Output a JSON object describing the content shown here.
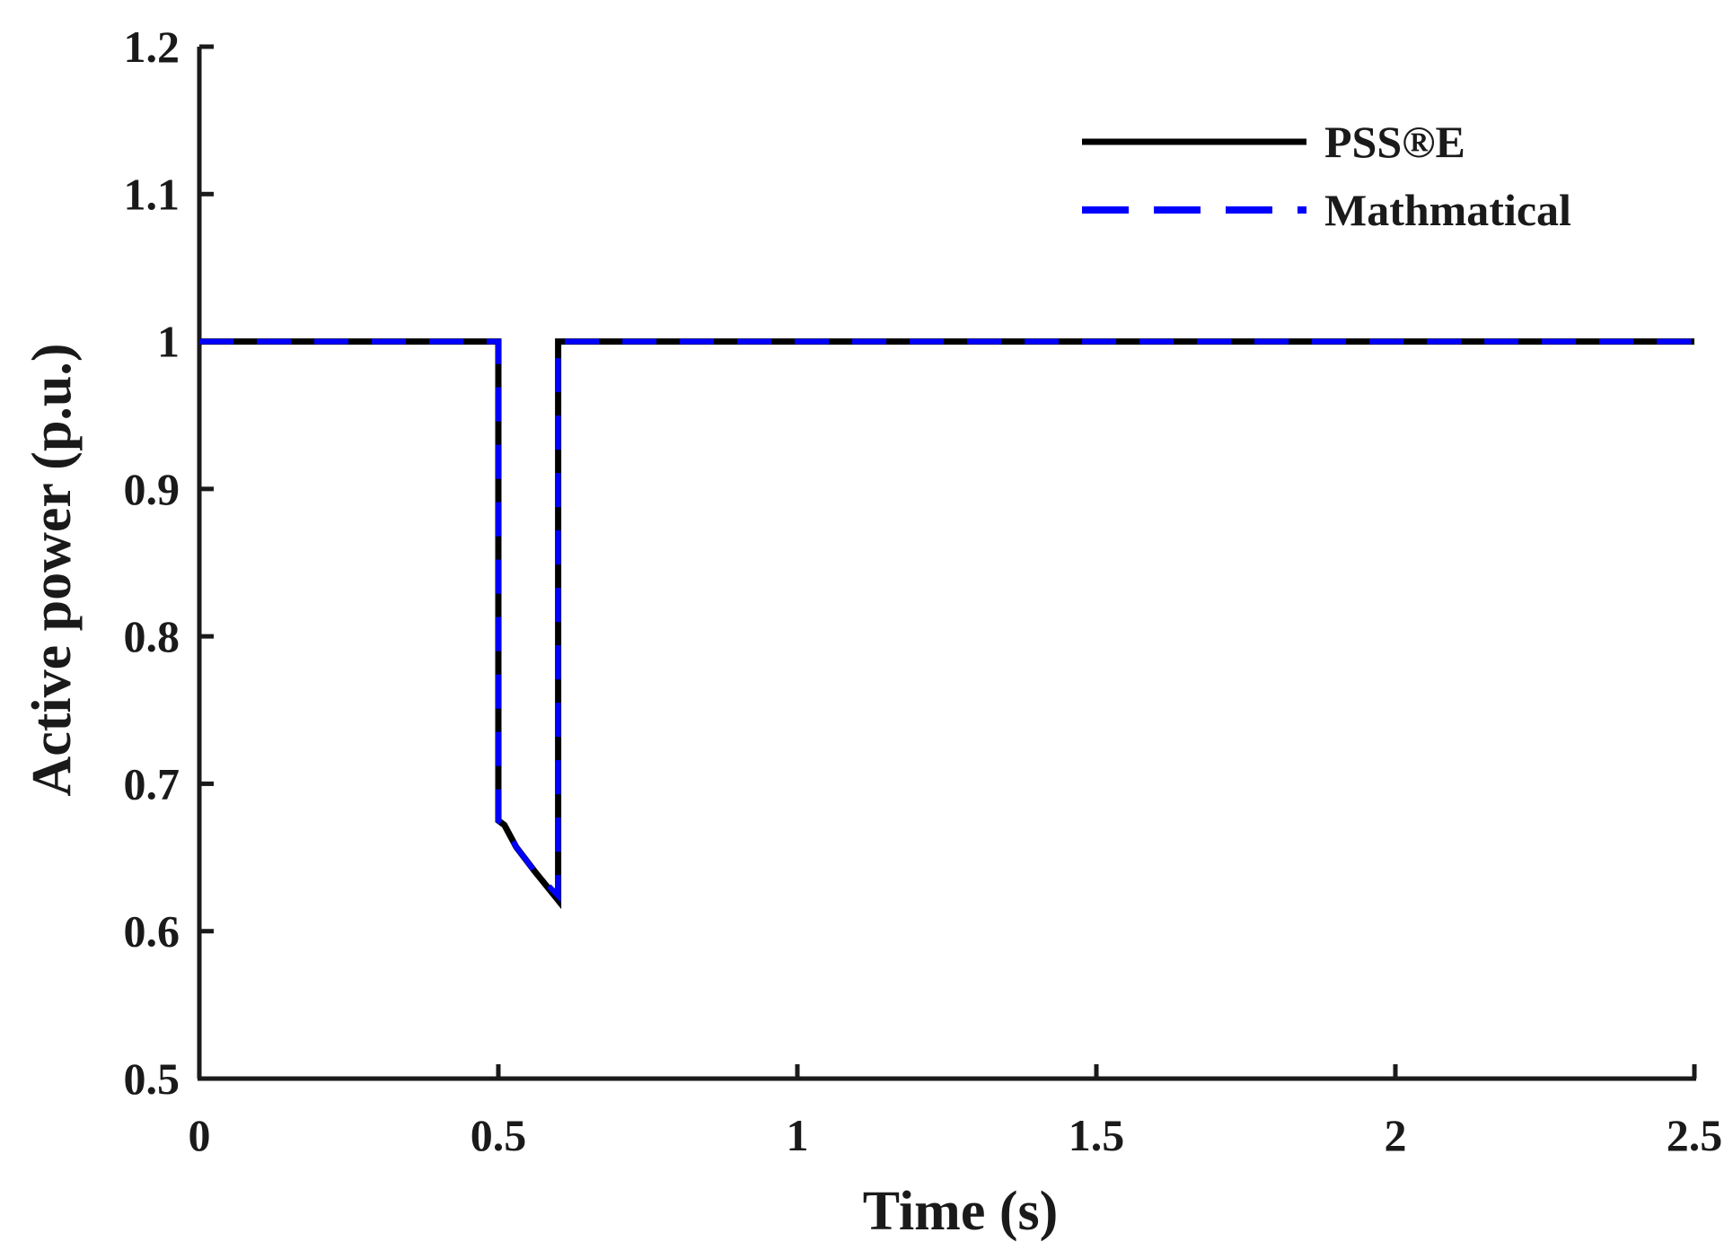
{
  "chart_data": {
    "type": "line",
    "title": "",
    "xlabel": "Time (s)",
    "ylabel": "Active power (p.u.)",
    "xlim": [
      0,
      2.5
    ],
    "ylim": [
      0.5,
      1.2
    ],
    "x_ticks": [
      0,
      0.5,
      1,
      1.5,
      2,
      2.5
    ],
    "x_tick_labels": [
      "0",
      "0.5",
      "1",
      "1.5",
      "2",
      "2.5"
    ],
    "y_ticks": [
      0.5,
      0.6,
      0.7,
      0.8,
      0.9,
      1.0,
      1.1,
      1.2
    ],
    "y_tick_labels": [
      "0.5",
      "0.6",
      "0.7",
      "0.8",
      "0.9",
      "1",
      "1.1",
      "1.2"
    ],
    "grid": false,
    "legend_position": "top-right",
    "series": [
      {
        "name": "PSS®E",
        "color": "#000000",
        "style": "solid",
        "x": [
          0,
          0.5,
          0.5,
          0.51,
          0.53,
          0.56,
          0.6,
          0.6,
          2.5
        ],
        "y": [
          1.0,
          1.0,
          0.675,
          0.672,
          0.657,
          0.641,
          0.621,
          1.0,
          1.0
        ]
      },
      {
        "name": "Mathmatical",
        "color": "#0000ff",
        "style": "dashed",
        "x": [
          0,
          0.5,
          0.5,
          0.51,
          0.53,
          0.56,
          0.6,
          0.6,
          2.5
        ],
        "y": [
          1.0,
          1.0,
          0.675,
          0.672,
          0.657,
          0.641,
          0.624,
          1.0,
          1.0
        ]
      }
    ]
  }
}
